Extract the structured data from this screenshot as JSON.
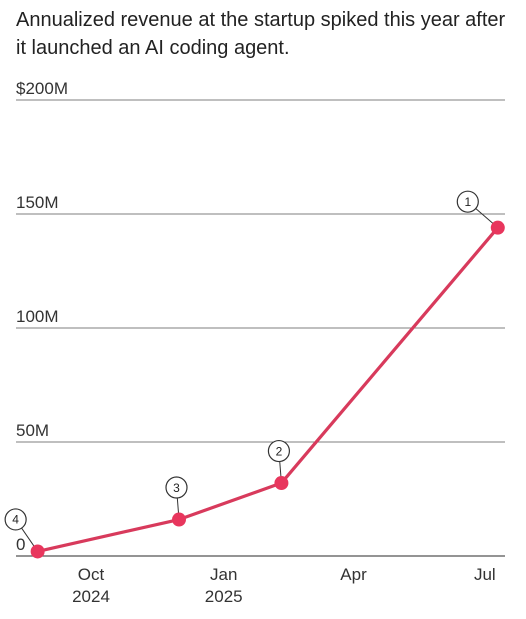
{
  "chart_data": {
    "type": "line",
    "title": "Annualized revenue at the startup spiked this year after it launched an AI coding agent.",
    "xlabel": "",
    "ylabel": "",
    "ylim": [
      0,
      200
    ],
    "y_ticks": [
      {
        "value": 0,
        "label": "0"
      },
      {
        "value": 50,
        "label": "50M"
      },
      {
        "value": 100,
        "label": "100M"
      },
      {
        "value": 150,
        "label": "150M"
      },
      {
        "value": 200,
        "label": "$200M"
      }
    ],
    "xlim": [
      "2024-08-10",
      "2025-07-15"
    ],
    "x_ticks": [
      {
        "date": "2024-10-01",
        "label": [
          "Oct",
          "2024"
        ]
      },
      {
        "date": "2025-01-01",
        "label": [
          "Jan",
          "2025"
        ]
      },
      {
        "date": "2025-04-01",
        "label": [
          "Apr"
        ]
      },
      {
        "date": "2025-07-01",
        "label": [
          "Jul"
        ]
      }
    ],
    "grid": true,
    "series": [
      {
        "x": [
          "2024-08-25",
          "2024-12-01",
          "2025-02-10",
          "2025-07-10"
        ],
        "y": [
          2,
          16,
          32,
          144
        ],
        "annotations": [
          "4",
          "3",
          "2",
          "1"
        ]
      }
    ],
    "colors": {
      "line": "#d83a5c",
      "point": "#e8365d",
      "grid": "#7f7f7f"
    }
  }
}
